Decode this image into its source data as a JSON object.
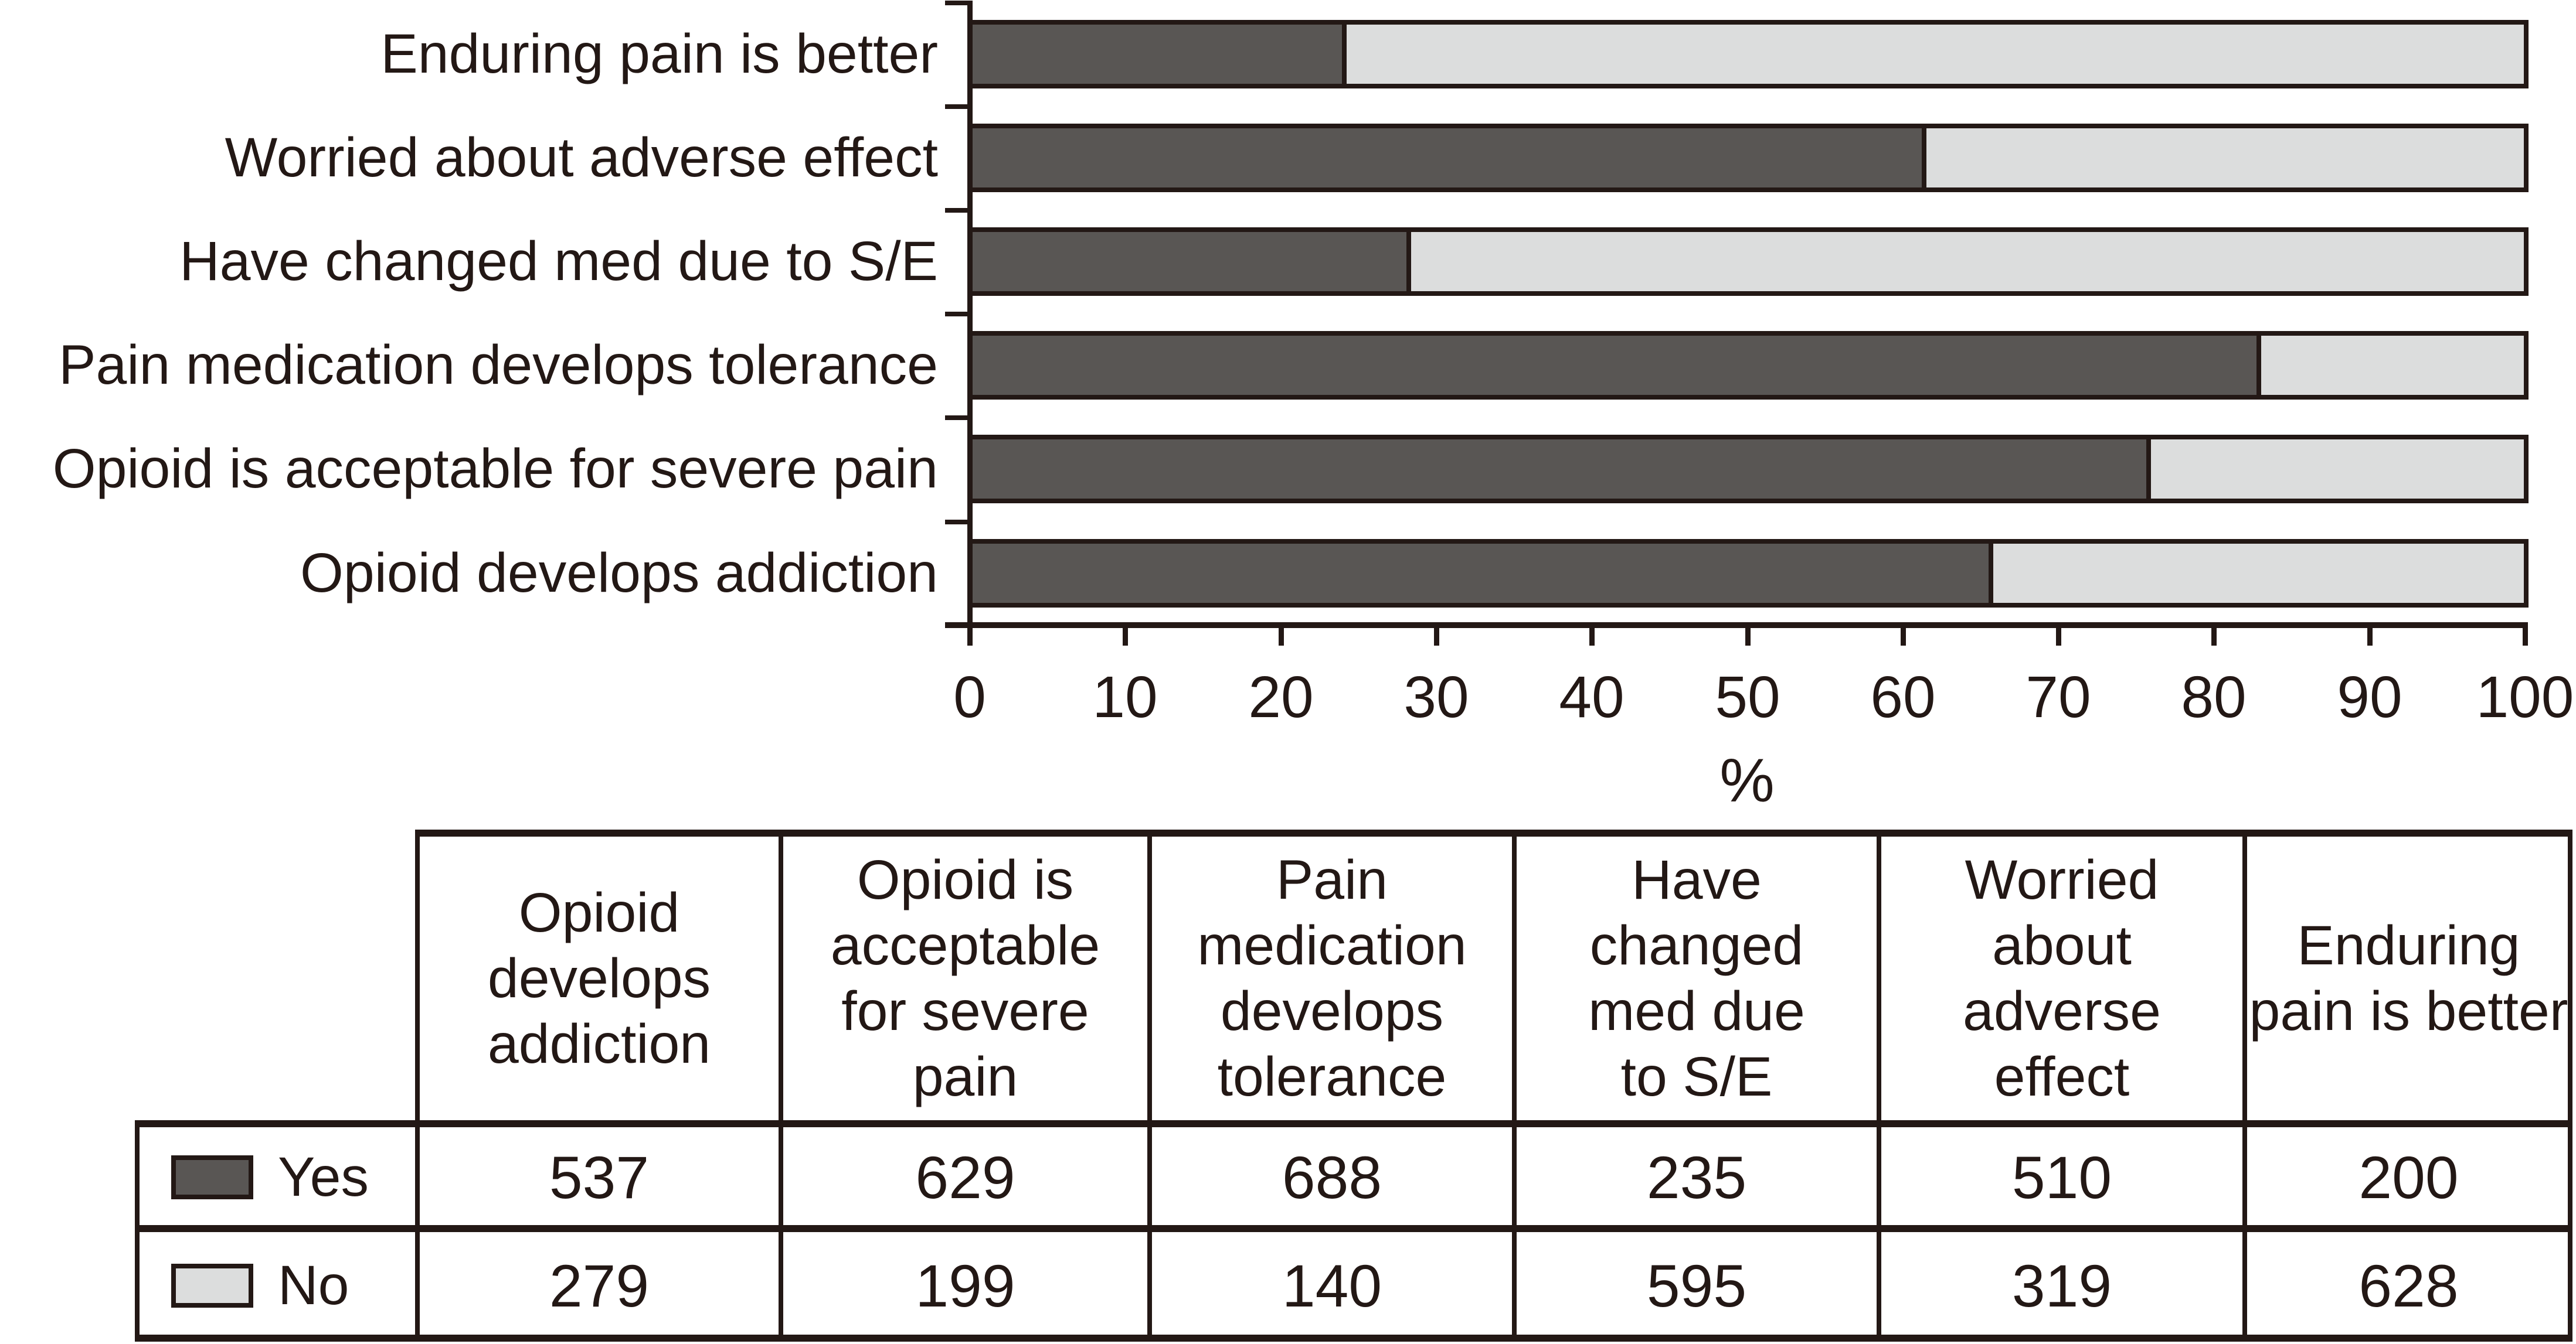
{
  "ink": "#231815",
  "colors": {
    "yes": "#595654",
    "no": "#dcdddd"
  },
  "chart_data": {
    "type": "bar",
    "orientation": "horizontal-stacked",
    "title": "",
    "xlabel": "%",
    "ylabel": "",
    "xlim": [
      0,
      100
    ],
    "grid": false,
    "x_ticks": [
      "0",
      "10",
      "20",
      "30",
      "40",
      "50",
      "60",
      "70",
      "80",
      "90",
      "100"
    ],
    "legend": [
      {
        "name": "Yes",
        "color": "#595654"
      },
      {
        "name": "No",
        "color": "#dcdddd"
      }
    ],
    "rows": [
      {
        "label": "Enduring pain is better",
        "yes": 200,
        "no": 628,
        "yes_pct": 24.2
      },
      {
        "label": "Worried about adverse effect",
        "yes": 510,
        "no": 319,
        "yes_pct": 61.5
      },
      {
        "label": "Have changed med due to S/E",
        "yes": 235,
        "no": 595,
        "yes_pct": 28.3
      },
      {
        "label": "Pain medication develops tolerance",
        "yes": 688,
        "no": 140,
        "yes_pct": 83.1
      },
      {
        "label": "Opioid is acceptable for severe pain",
        "yes": 629,
        "no": 199,
        "yes_pct": 76.0
      },
      {
        "label": "Opioid develops addiction",
        "yes": 537,
        "no": 279,
        "yes_pct": 65.8
      }
    ]
  },
  "table": {
    "columns": [
      "Opioid\ndevelops\naddiction",
      "Opioid is\nacceptable\nfor severe\npain",
      "Pain\nmedication\ndevelops\ntolerance",
      "Have\nchanged\nmed due\nto S/E",
      "Worried\nabout\nadverse\neffect",
      "Enduring\npain is better"
    ],
    "rows": [
      {
        "label": "Yes",
        "values": [
          "537",
          "629",
          "688",
          "235",
          "510",
          "200"
        ]
      },
      {
        "label": "No",
        "values": [
          "279",
          "199",
          "140",
          "595",
          "319",
          "628"
        ]
      }
    ]
  }
}
